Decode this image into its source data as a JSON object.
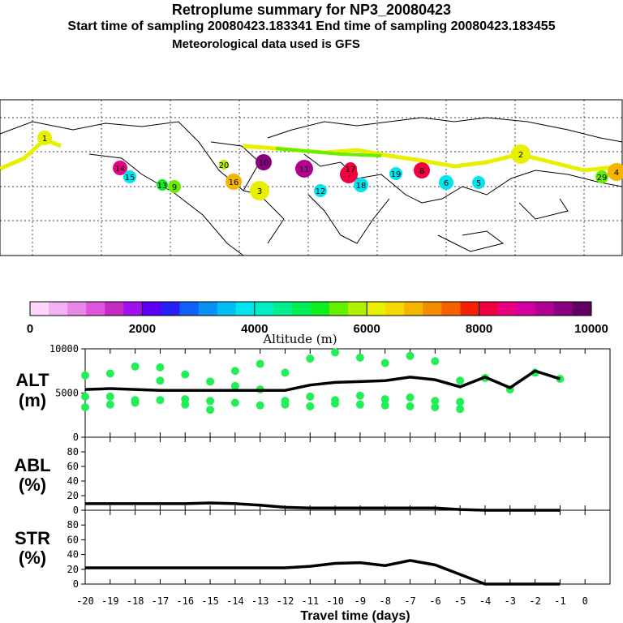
{
  "header": {
    "title": "Retroplume summary for NP3_20080423",
    "sampling": "Start time of sampling 20080423.183341     End time of sampling 20080423.183455",
    "met": "Meteorological data used is GFS"
  },
  "colorbar": {
    "colors": [
      "#fbd8fb",
      "#f4b0f4",
      "#ea86ea",
      "#dd55dd",
      "#c42ac4",
      "#9e10ee",
      "#5c00f5",
      "#2a20f5",
      "#1060f5",
      "#0890f5",
      "#00bdf5",
      "#00e4ee",
      "#00eec4",
      "#00ee90",
      "#00ee55",
      "#10ee20",
      "#66ee00",
      "#b0f000",
      "#e8f000",
      "#f5d800",
      "#f5b400",
      "#f58c00",
      "#f56000",
      "#f52000",
      "#f00040",
      "#e80080",
      "#d000a0",
      "#b00090",
      "#880080",
      "#600060"
    ],
    "ticks": [
      "0",
      "2000",
      "4000",
      "6000",
      "8000",
      "10000"
    ],
    "label": "Altitude (m)"
  },
  "map": {
    "plume_points": [
      {
        "label": "1",
        "color": "#e8f000"
      },
      {
        "label": "2",
        "color": "#e8f000"
      },
      {
        "label": "3",
        "color": "#e8f000"
      },
      {
        "label": "4",
        "color": "#f5b400"
      },
      {
        "label": "5",
        "color": "#00e4ee"
      },
      {
        "label": "6",
        "color": "#00e4ee"
      },
      {
        "label": "7",
        "color": "#f00040"
      },
      {
        "label": "8",
        "color": "#f00040"
      },
      {
        "label": "9",
        "color": "#66ee00"
      },
      {
        "label": "10",
        "color": "#880080"
      },
      {
        "label": "11",
        "color": "#b00090"
      },
      {
        "label": "12",
        "color": "#00e4ee"
      },
      {
        "label": "13",
        "color": "#10ee20"
      },
      {
        "label": "14",
        "color": "#e80080"
      },
      {
        "label": "15",
        "color": "#00e4ee"
      },
      {
        "label": "16",
        "color": "#f5b400"
      },
      {
        "label": "17",
        "color": "#f00040"
      },
      {
        "label": "18",
        "color": "#00e4ee"
      },
      {
        "label": "19",
        "color": "#00e4ee"
      },
      {
        "label": "20",
        "color": "#b0f000"
      },
      {
        "label": "29",
        "color": "#66ee00"
      }
    ]
  },
  "chart_data": [
    {
      "type": "line",
      "title": "ALT (m)",
      "label_line1": "ALT",
      "label_line2": "(m)",
      "ylim": [
        0,
        10000
      ],
      "yticks": [
        "0",
        "5000",
        "10000"
      ],
      "x": [
        -20,
        -19,
        -18,
        -17,
        -16,
        -15,
        -14,
        -13,
        -12,
        -11,
        -10,
        -9,
        -8,
        -7,
        -6,
        -5,
        -4,
        -3,
        -2,
        -1
      ],
      "values": [
        5400,
        5500,
        5400,
        5300,
        5300,
        5300,
        5300,
        5300,
        5300,
        5900,
        6200,
        6300,
        6400,
        6800,
        6500,
        5700,
        6800,
        5600,
        7500,
        6600
      ],
      "scatter": [
        {
          "x": -20,
          "y": [
            7000,
            4600,
            3400
          ]
        },
        {
          "x": -19,
          "y": [
            7200,
            4600,
            3700
          ]
        },
        {
          "x": -18,
          "y": [
            8000,
            4200,
            3900
          ]
        },
        {
          "x": -17,
          "y": [
            7900,
            6400,
            4200
          ]
        },
        {
          "x": -16,
          "y": [
            7100,
            4300,
            3700
          ]
        },
        {
          "x": -15,
          "y": [
            6300,
            4100,
            3100
          ]
        },
        {
          "x": -14,
          "y": [
            7500,
            5800,
            3900
          ]
        },
        {
          "x": -13,
          "y": [
            8300,
            5400,
            3600
          ]
        },
        {
          "x": -12,
          "y": [
            7300,
            4100,
            3700
          ]
        },
        {
          "x": -11,
          "y": [
            8900,
            4600,
            3500
          ]
        },
        {
          "x": -10,
          "y": [
            9600,
            4200,
            3800
          ]
        },
        {
          "x": -9,
          "y": [
            9000,
            4700,
            3700
          ]
        },
        {
          "x": -8,
          "y": [
            8400,
            4300,
            3600
          ]
        },
        {
          "x": -7,
          "y": [
            9200,
            4500,
            3500
          ]
        },
        {
          "x": -6,
          "y": [
            8600,
            4100,
            3400
          ]
        },
        {
          "x": -5,
          "y": [
            6400,
            4000,
            3200
          ]
        },
        {
          "x": -4,
          "y": [
            6700
          ]
        },
        {
          "x": -3,
          "y": [
            5400
          ]
        },
        {
          "x": -2,
          "y": [
            7300
          ]
        },
        {
          "x": -1,
          "y": [
            6600
          ]
        }
      ]
    },
    {
      "type": "line",
      "title": "ABL (%)",
      "label_line1": "ABL",
      "label_line2": "(%)",
      "ylim": [
        0,
        100
      ],
      "yticks": [
        "0",
        "20",
        "40",
        "60",
        "80"
      ],
      "x": [
        -20,
        -19,
        -18,
        -17,
        -16,
        -15,
        -14,
        -13,
        -12,
        -11,
        -10,
        -9,
        -8,
        -7,
        -6,
        -5,
        -4,
        -3,
        -2,
        -1
      ],
      "values": [
        9,
        9,
        9,
        9,
        9,
        10,
        9,
        7,
        4,
        3,
        3,
        3,
        3,
        3,
        3,
        1,
        0,
        0,
        0,
        0
      ]
    },
    {
      "type": "line",
      "title": "STR (%)",
      "label_line1": "STR",
      "label_line2": "(%)",
      "ylim": [
        0,
        100
      ],
      "yticks": [
        "0",
        "20",
        "40",
        "60",
        "80"
      ],
      "x": [
        -20,
        -19,
        -18,
        -17,
        -16,
        -15,
        -14,
        -13,
        -12,
        -11,
        -10,
        -9,
        -8,
        -7,
        -6,
        -5,
        -4,
        -3,
        -2,
        -1
      ],
      "values": [
        22,
        22,
        22,
        22,
        22,
        22,
        22,
        22,
        22,
        24,
        28,
        29,
        25,
        32,
        26,
        13,
        0,
        0,
        0,
        0
      ],
      "xlabel": "Travel time (days)",
      "xticks": [
        "-20",
        "-19",
        "-18",
        "-17",
        "-16",
        "-15",
        "-14",
        "-13",
        "-12",
        "-11",
        "-10",
        "-9",
        "-8",
        "-7",
        "-6",
        "-5",
        "-4",
        "-3",
        "-2",
        "-1",
        "0"
      ]
    }
  ]
}
